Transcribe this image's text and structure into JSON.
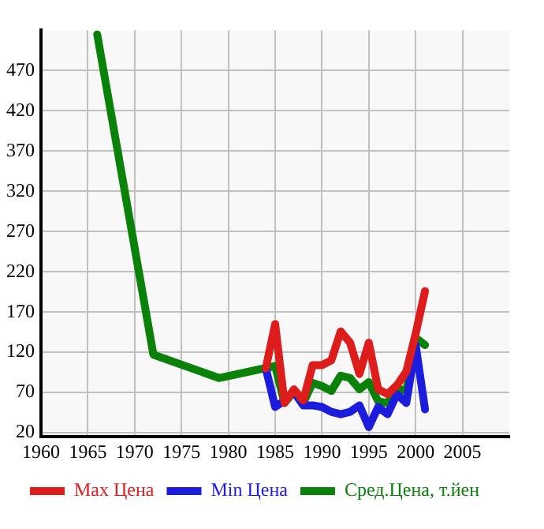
{
  "chart_data": {
    "type": "line",
    "xlim": [
      1960,
      2010
    ],
    "xticks": [
      1960,
      1965,
      1970,
      1975,
      1980,
      1985,
      1990,
      1995,
      2000,
      2005
    ],
    "ylim": [
      15,
      520
    ],
    "yticks": [
      20,
      70,
      120,
      170,
      220,
      270,
      320,
      370,
      420,
      470
    ],
    "grid": true,
    "legend": "bottom",
    "marker": "none",
    "line_style": "solid",
    "series": [
      {
        "name": "Max Цена",
        "color": "#dd1c1c",
        "x": [
          1984,
          1985,
          1986,
          1987,
          1988,
          1989,
          1990,
          1991,
          1992,
          1993,
          1994,
          1995,
          1996,
          1997,
          1998,
          1999,
          2000,
          2001
        ],
        "values": [
          100,
          155,
          57,
          74,
          60,
          104,
          104,
          110,
          146,
          132,
          93,
          132,
          74,
          68,
          79,
          96,
          143,
          196
        ]
      },
      {
        "name": "Min Цена",
        "color": "#1c1cdd",
        "x": [
          1984,
          1985,
          1986,
          1987,
          1988,
          1989,
          1990,
          1991,
          1992,
          1993,
          1994,
          1995,
          1996,
          1997,
          1998,
          1999,
          2000,
          2001
        ],
        "values": [
          100,
          52,
          60,
          71,
          54,
          54,
          52,
          46,
          43,
          46,
          54,
          27,
          52,
          43,
          68,
          57,
          129,
          49
        ]
      },
      {
        "name": "Сред.Цена, т.йен",
        "color": "#0a820a",
        "x": [
          1966,
          1972,
          1979,
          1985,
          1986,
          1987,
          1988,
          1989,
          1990,
          1991,
          1992,
          1993,
          1994,
          1995,
          1996,
          1997,
          1998,
          1999,
          2000,
          2001
        ],
        "values": [
          515,
          117,
          88,
          103,
          57,
          71,
          57,
          82,
          78,
          72,
          91,
          88,
          74,
          83,
          59,
          57,
          75,
          72,
          138,
          129
        ]
      }
    ]
  }
}
